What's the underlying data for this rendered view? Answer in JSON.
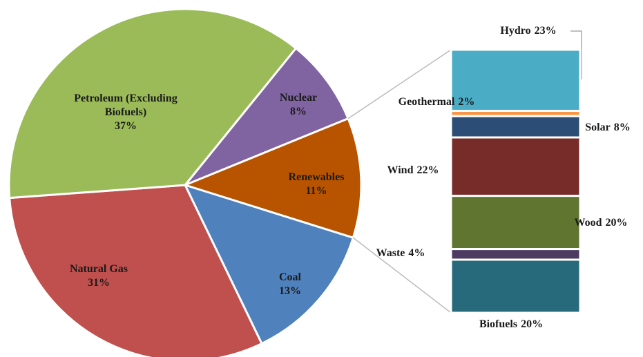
{
  "chart_data": {
    "type": "pie",
    "categories": [
      "Nuclear",
      "Renewables",
      "Coal",
      "Natural Gas",
      "Petroleum (Excluding Biofuels)"
    ],
    "values": [
      8,
      11,
      13,
      31,
      37
    ],
    "value_labels": [
      "8%",
      "11%",
      "13%",
      "31%",
      "37%"
    ],
    "colors": [
      "#8064a2",
      "#b85400",
      "#4f81bd",
      "#c0504d",
      "#9bbb59"
    ],
    "breakdown": {
      "type": "bar",
      "of": "Renewables",
      "categories": [
        "Hydro",
        "Geothermal",
        "Solar",
        "Wind",
        "Wood",
        "Waste",
        "Biofuels"
      ],
      "values": [
        23,
        2,
        8,
        22,
        20,
        4,
        20
      ],
      "value_labels": [
        "23%",
        "2%",
        "8%",
        "22%",
        "20%",
        "4%",
        "20%"
      ],
      "colors": [
        "#4bacc6",
        "#f79646",
        "#2c4d75",
        "#772c2a",
        "#5f7530",
        "#4d3b62",
        "#276a7c"
      ]
    }
  }
}
